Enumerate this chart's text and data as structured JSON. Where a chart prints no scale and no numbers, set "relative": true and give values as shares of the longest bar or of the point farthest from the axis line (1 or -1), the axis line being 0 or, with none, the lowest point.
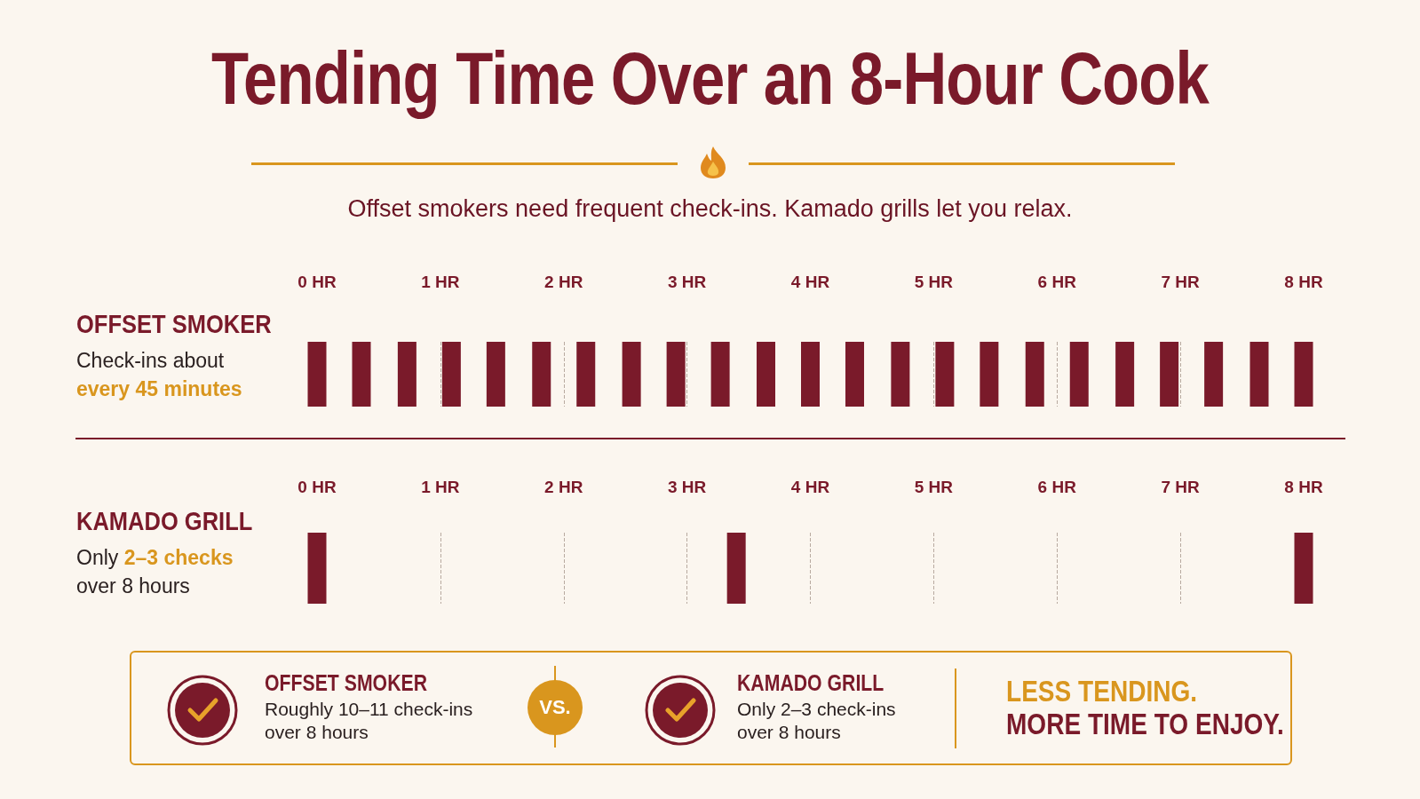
{
  "chart_data": [
    {
      "type": "bar",
      "title": "Tending Time Over an 8-Hour Cook",
      "subtitle": "Offset smokers need frequent check-ins. Kamado grills let you relax.",
      "ylabel": "OFFSET SMOKER",
      "annotations": [
        "Check-ins about",
        "every 45 minutes"
      ],
      "x": [
        0,
        0.36,
        0.73,
        1.09,
        1.45,
        1.82,
        2.18,
        2.55,
        2.91,
        3.27,
        3.64,
        4.0,
        4.36,
        4.73,
        5.09,
        5.45,
        5.82,
        6.18,
        6.55,
        6.91,
        7.27,
        7.64,
        8.0
      ],
      "values": [
        1,
        1,
        1,
        1,
        1,
        1,
        1,
        1,
        1,
        1,
        1,
        1,
        1,
        1,
        1,
        1,
        1,
        1,
        1,
        1,
        1,
        1,
        1
      ],
      "color": "#7a1a2a",
      "relative": true,
      "xlim": [
        0,
        8
      ],
      "xticks": [
        {
          "value": 0,
          "label": "0 HR"
        },
        {
          "value": 1,
          "label": "1 HR"
        },
        {
          "value": 2,
          "label": "2 HR"
        },
        {
          "value": 3,
          "label": "3 HR"
        },
        {
          "value": 4,
          "label": "4 HR"
        },
        {
          "value": 5,
          "label": "5 HR"
        },
        {
          "value": 6,
          "label": "6 HR"
        },
        {
          "value": 7,
          "label": "7 HR"
        },
        {
          "value": 8,
          "label": "8 HR"
        }
      ],
      "grid": "x",
      "tick_labels": "x"
    },
    {
      "type": "bar",
      "ylabel": "KAMADO GRILL",
      "annotations": [
        "Only",
        "2–3 checks",
        "over 8 hours"
      ],
      "x": [
        0,
        3.4,
        8.0
      ],
      "values": [
        1,
        1,
        1
      ],
      "color": "#7a1a2a",
      "relative": true,
      "xlim": [
        0,
        8
      ],
      "xticks": [
        {
          "value": 0,
          "label": "0 HR"
        },
        {
          "value": 1,
          "label": "1 HR"
        },
        {
          "value": 2,
          "label": "2 HR"
        },
        {
          "value": 3,
          "label": "3 HR"
        },
        {
          "value": 4,
          "label": "4 HR"
        },
        {
          "value": 5,
          "label": "5 HR"
        },
        {
          "value": 6,
          "label": "6 HR"
        },
        {
          "value": 7,
          "label": "7 HR"
        },
        {
          "value": 8,
          "label": "8 HR"
        }
      ],
      "grid": "x",
      "tick_labels": "x"
    },
    {
      "type": "other",
      "annotations": [
        "OFFSET SMOKER",
        "Roughly 10–11 check-ins",
        "over 8 hours",
        "VS.",
        "KAMADO GRILL",
        "Only 2–3 check-ins",
        "over 8 hours",
        "LESS TENDING.",
        "MORE TIME TO ENJOY."
      ]
    }
  ]
}
